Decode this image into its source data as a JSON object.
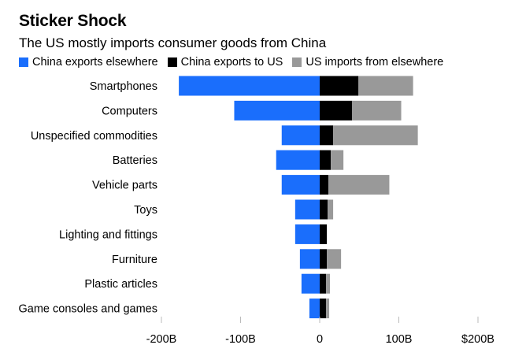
{
  "chart_data": {
    "type": "bar",
    "stacked": true,
    "orientation": "horizontal",
    "title": "Sticker Shock",
    "subtitle": "The US mostly imports consumer goods from China",
    "categories": [
      "Smartphones",
      "Computers",
      "Unspecified commodities",
      "Batteries",
      "Vehicle parts",
      "Toys",
      "Lighting and fittings",
      "Furniture",
      "Plastic articles",
      "Game consoles and games"
    ],
    "series": [
      {
        "name": "China exports elsewhere",
        "color": "#1a6efc",
        "values": [
          -178,
          -108,
          -48,
          -55,
          -48,
          -31,
          -31,
          -25,
          -23,
          -13
        ]
      },
      {
        "name": "China exports to US",
        "color": "#000000",
        "values": [
          49,
          41,
          17,
          14,
          11,
          10,
          9,
          9,
          8,
          8
        ]
      },
      {
        "name": "US imports from elsewhere",
        "color": "#999999",
        "values": [
          69,
          62,
          107,
          16,
          77,
          7,
          0,
          18,
          5,
          4
        ]
      }
    ],
    "xlim": [
      -200,
      200
    ],
    "xticks": [
      -200,
      -100,
      0,
      100,
      200
    ],
    "xtick_labels": [
      "-200B",
      "-100B",
      "0",
      "100B",
      "$200B"
    ],
    "xlabel": "",
    "ylabel": "",
    "grid": false,
    "legend_position": "top-left"
  }
}
